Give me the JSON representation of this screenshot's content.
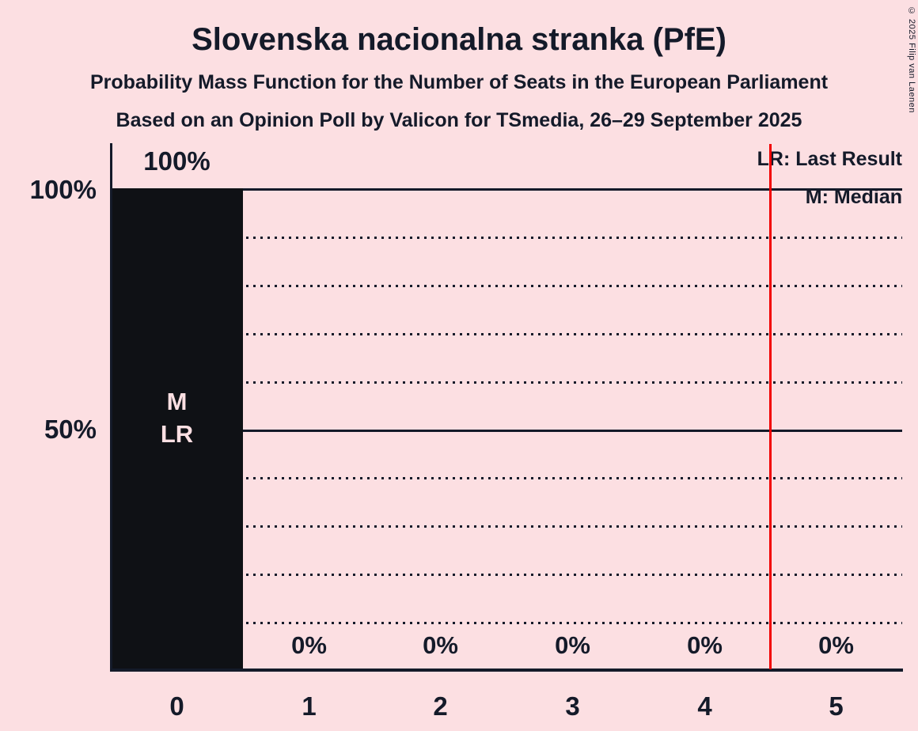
{
  "title": "Slovenska nacionalna stranka (PfE)",
  "subtitle": "Probability Mass Function for the Number of Seats in the European Parliament",
  "source_line": "Based on an Opinion Poll by Valicon for TSmedia, 26–29 September 2025",
  "copyright": "© 2025 Filip van Laenen",
  "legend": {
    "last_result": "LR: Last Result",
    "median": "M: Median"
  },
  "y_axis": {
    "labels": [
      "100%",
      "50%"
    ]
  },
  "bar_overlay": {
    "median_marker": "M",
    "last_result_marker": "LR"
  },
  "chart_data": {
    "type": "bar",
    "title": "Slovenska nacionalna stranka (PfE) — Probability Mass Function for the Number of Seats in the European Parliament",
    "categories": [
      "0",
      "1",
      "2",
      "3",
      "4",
      "5"
    ],
    "values": [
      100,
      0,
      0,
      0,
      0,
      0
    ],
    "value_labels": [
      "100%",
      "0%",
      "0%",
      "0%",
      "0%",
      " 0%"
    ],
    "ylim": [
      0,
      100
    ],
    "y_tick_labels_shown": [
      "100%",
      "50%"
    ],
    "gridline_interval_pct": 10,
    "grid_on": true,
    "median_seats": "0",
    "last_result_seats": "0",
    "vertical_red_line_at": 4.5,
    "legend_position": "top-right",
    "colors": {
      "background": "#fcdfe2",
      "bar": "#0f1115",
      "text": "#141a29",
      "bar_label_text": "#fcdfe2",
      "vertical_line": "#f20000"
    }
  }
}
